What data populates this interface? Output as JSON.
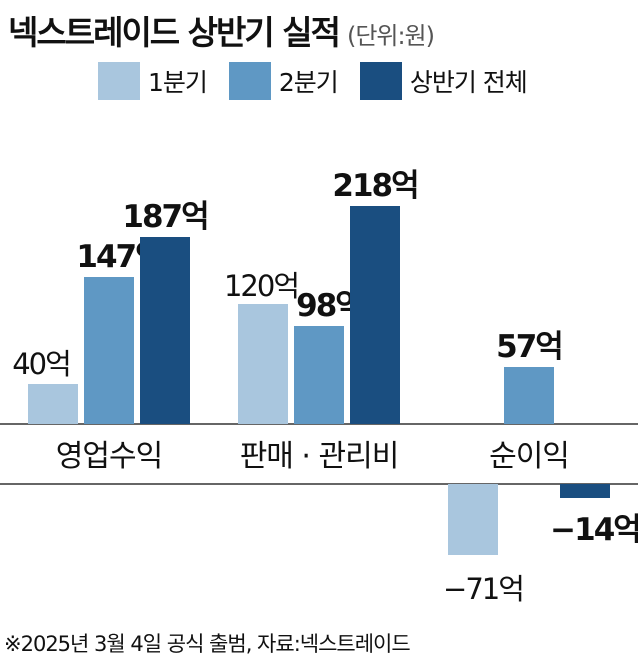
{
  "title": "넥스트레이드 상반기 실적",
  "unit": "(단위:원)",
  "legend": [
    {
      "name": "1분기",
      "color": "#a9c6de"
    },
    {
      "name": "2분기",
      "color": "#5f98c4"
    },
    {
      "name": "상반기 전체",
      "color": "#1a4e80"
    }
  ],
  "source": "※2025년 3월 4일 공식 출범,  자료:넥스트레이드",
  "chart_data": {
    "type": "bar",
    "categories": [
      "영업수익",
      "판매 · 관리비",
      "순이익"
    ],
    "series": [
      {
        "name": "1분기",
        "values": [
          40,
          120,
          -71
        ],
        "labels": [
          "40억",
          "120억",
          "−71억"
        ]
      },
      {
        "name": "2분기",
        "values": [
          147,
          98,
          57
        ],
        "labels": [
          "147억",
          "98억",
          "57억"
        ]
      },
      {
        "name": "상반기 전체",
        "values": [
          187,
          218,
          -14
        ],
        "labels": [
          "187억",
          "218억",
          "−14억"
        ]
      }
    ],
    "unit": "억원",
    "ylim": [
      -80,
      240
    ],
    "grid": false,
    "legend_position": "top"
  }
}
